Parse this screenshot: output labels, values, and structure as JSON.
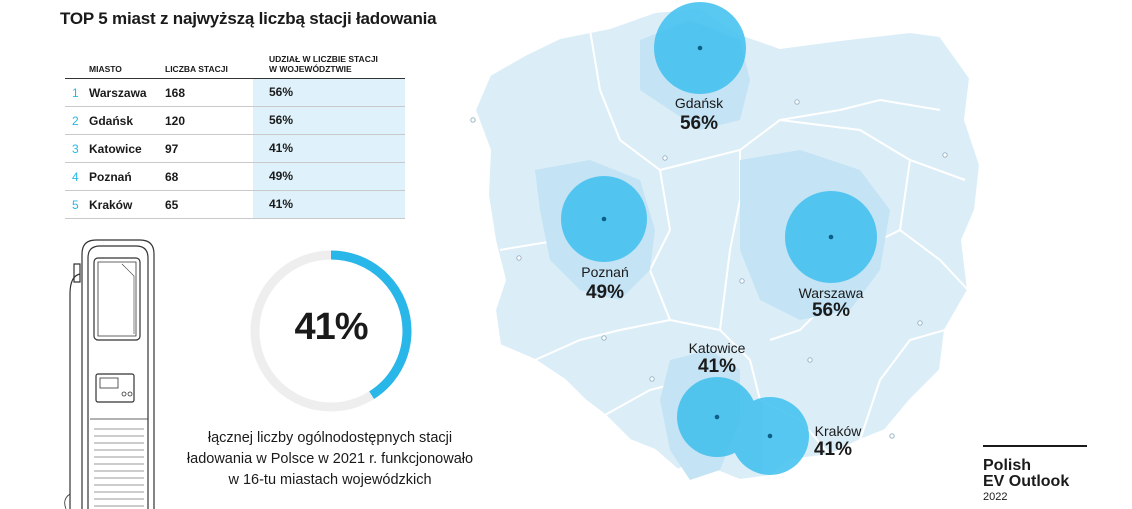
{
  "title": "TOP 5 miast z najwyższą liczbą stacji ładowania",
  "table": {
    "headers": [
      "MIASTO",
      "LICZBA STACJI",
      "UDZIAŁ W LICZBIE STACJI",
      "W WOJEWÓDZTWIE"
    ],
    "rows": [
      {
        "rank": "1",
        "city": "Warszawa",
        "count": "168",
        "share": "56%"
      },
      {
        "rank": "2",
        "city": "Gdańsk",
        "count": "120",
        "share": "56%"
      },
      {
        "rank": "3",
        "city": "Katowice",
        "count": "97",
        "share": "41%"
      },
      {
        "rank": "4",
        "city": "Poznań",
        "count": "68",
        "share": "49%"
      },
      {
        "rank": "5",
        "city": "Kraków",
        "count": "65",
        "share": "41%"
      }
    ]
  },
  "donut": {
    "value": 41,
    "label": "41%",
    "caption": [
      "łącznej liczby ogólnodostępnych stacji",
      "ładowania w Polsce w 2021 r. funkcjonowało",
      "w 16-tu miastach wojewódzkich"
    ],
    "color": "#29b6e8",
    "track_color": "#eeeeee"
  },
  "map": {
    "cities": [
      {
        "name": "Gdańsk",
        "share": "56%"
      },
      {
        "name": "Poznań",
        "share": "49%"
      },
      {
        "name": "Warszawa",
        "share": "56%"
      },
      {
        "name": "Katowice",
        "share": "41%"
      },
      {
        "name": "Kraków",
        "share": "41%"
      }
    ],
    "bubble_color": "#3dbfee",
    "region_color": "#dbeef8",
    "highlight_region_color": "#c4e3f4"
  },
  "brand": {
    "line1": "Polish",
    "line2": "EV Outlook",
    "year": "2022"
  },
  "chart_data": [
    {
      "type": "table",
      "title": "TOP 5 miast z najwyższą liczbą stacji ładowania",
      "columns": [
        "MIASTO",
        "LICZBA STACJI",
        "UDZIAŁ W LICZBIE STACJI W WOJEWÓDZTWIE"
      ],
      "rows": [
        [
          "Warszawa",
          168,
          "56%"
        ],
        [
          "Gdańsk",
          120,
          "56%"
        ],
        [
          "Katowice",
          97,
          "41%"
        ],
        [
          "Poznań",
          68,
          "49%"
        ],
        [
          "Kraków",
          65,
          "41%"
        ]
      ]
    },
    {
      "type": "pie",
      "values": [
        41,
        59
      ],
      "highlight": "41%"
    }
  ]
}
